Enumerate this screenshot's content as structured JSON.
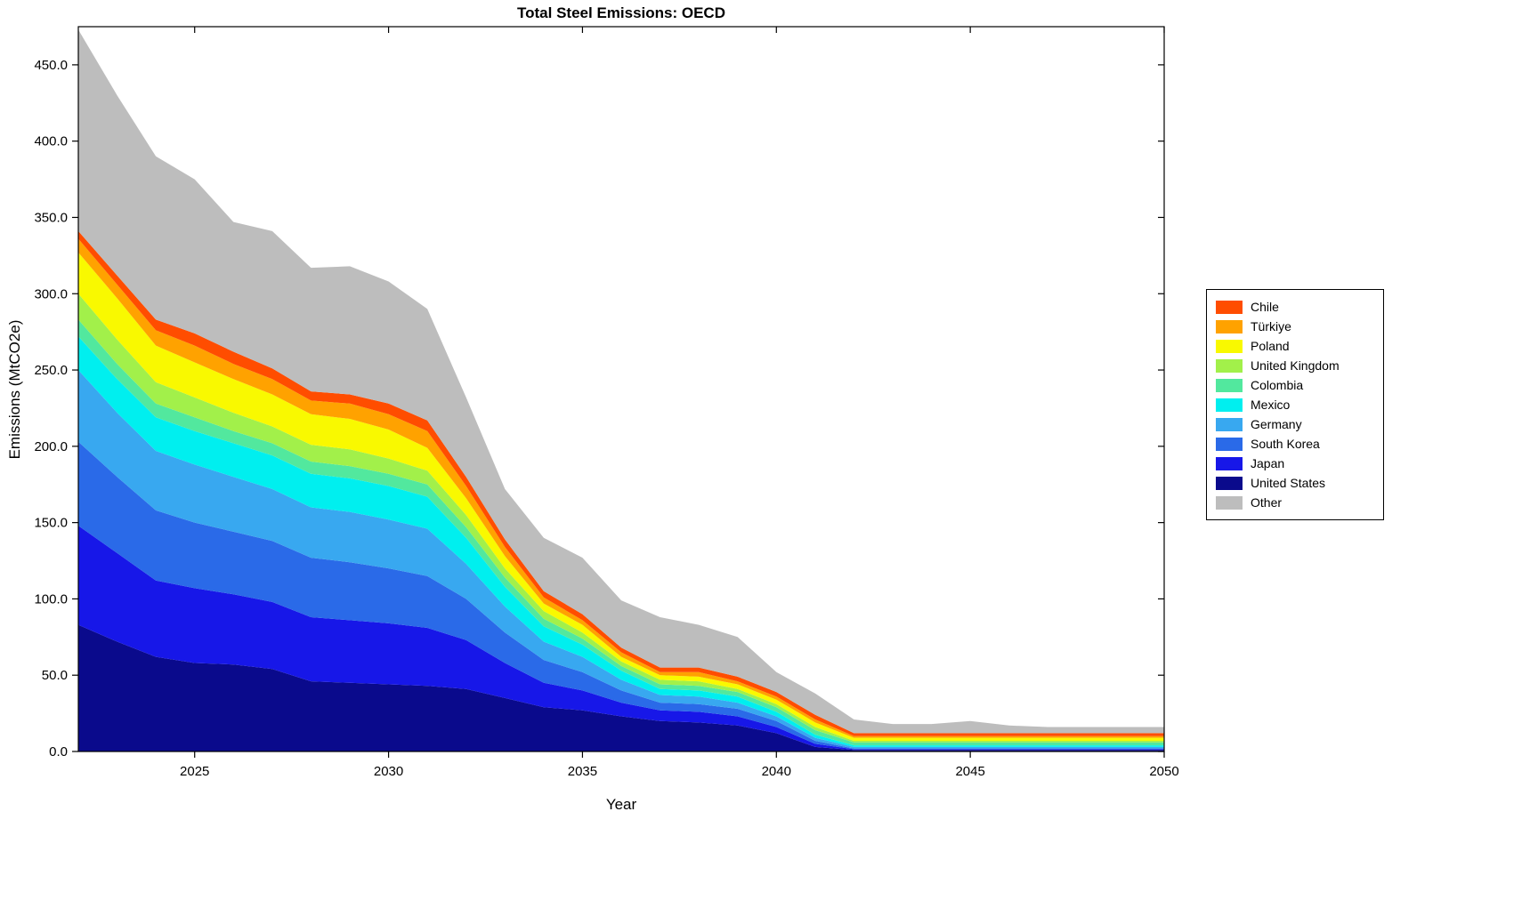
{
  "chart_data": {
    "type": "area",
    "stacked": true,
    "title": "Total Steel Emissions: OECD",
    "xlabel": "Year",
    "ylabel": "Emissions (MtCO2e)",
    "x": [
      2022,
      2023,
      2024,
      2025,
      2026,
      2027,
      2028,
      2029,
      2030,
      2031,
      2032,
      2033,
      2034,
      2035,
      2036,
      2037,
      2038,
      2039,
      2040,
      2041,
      2042,
      2043,
      2044,
      2045,
      2046,
      2047,
      2048,
      2049,
      2050
    ],
    "xticks": [
      2025,
      2030,
      2035,
      2040,
      2045,
      2050
    ],
    "yticks": [
      0,
      50,
      100,
      150,
      200,
      250,
      300,
      350,
      400,
      450
    ],
    "ylim": [
      0,
      475
    ],
    "grid": false,
    "legend_position": "right-outside",
    "series": [
      {
        "name": "United States",
        "color": "#0a0a8c",
        "values": [
          83,
          72,
          62,
          58,
          57,
          54,
          46,
          45,
          44,
          43,
          41,
          35,
          29,
          27,
          23,
          20,
          19,
          17,
          12,
          3,
          1,
          1,
          1,
          1,
          1,
          1,
          1,
          1,
          1
        ]
      },
      {
        "name": "Japan",
        "color": "#1717e8",
        "values": [
          65,
          58,
          50,
          49,
          46,
          44,
          42,
          41,
          40,
          38,
          32,
          23,
          16,
          13,
          9,
          7,
          7,
          6,
          4,
          2,
          0.5,
          0.5,
          0.5,
          0.5,
          0.5,
          0.5,
          0.5,
          0.5,
          0.5
        ]
      },
      {
        "name": "South Korea",
        "color": "#2a6ae8",
        "values": [
          55,
          50,
          46,
          43,
          41,
          40,
          39,
          38,
          36,
          34,
          27,
          20,
          15,
          12,
          8,
          5,
          5,
          5,
          4,
          2,
          0.5,
          0.5,
          0.5,
          0.5,
          0.5,
          0.5,
          0.5,
          0.5,
          0.5
        ]
      },
      {
        "name": "Germany",
        "color": "#38a8f0",
        "values": [
          47,
          42,
          39,
          38,
          36,
          34,
          33,
          33,
          32,
          31,
          23,
          17,
          12,
          10,
          7,
          5,
          5,
          4,
          3,
          2,
          1,
          1,
          1,
          1,
          1,
          1,
          1,
          1,
          1
        ]
      },
      {
        "name": "Mexico",
        "color": "#00efef",
        "values": [
          22,
          22,
          22,
          22,
          22,
          22,
          22,
          22,
          22,
          21,
          17,
          13,
          10,
          8,
          6,
          4,
          4,
          4,
          3,
          2,
          1,
          1,
          1,
          1,
          1,
          1,
          1,
          1,
          1
        ]
      },
      {
        "name": "Colombia",
        "color": "#52e89e",
        "values": [
          11,
          10,
          9,
          9,
          8,
          8,
          8,
          8,
          8,
          8,
          7,
          6,
          5,
          4,
          3,
          3,
          3,
          3,
          3,
          3,
          2,
          2,
          2,
          2,
          2,
          2,
          2,
          2,
          2
        ]
      },
      {
        "name": "United Kingdom",
        "color": "#a2f04a",
        "values": [
          17,
          16,
          14,
          13,
          12,
          11,
          11,
          11,
          10,
          9,
          8,
          6,
          5,
          4,
          3,
          3,
          3,
          2,
          2,
          2,
          1,
          1,
          1,
          1,
          1,
          1,
          1,
          1,
          1
        ]
      },
      {
        "name": "Poland",
        "color": "#f9f900",
        "values": [
          27,
          27,
          24,
          23,
          22,
          21,
          20,
          20,
          19,
          15,
          11,
          8,
          5,
          5,
          3,
          3,
          3,
          3,
          3,
          3,
          2,
          2,
          2,
          2,
          2,
          2,
          2,
          2,
          2
        ]
      },
      {
        "name": "Türkiye",
        "color": "#ffa200",
        "values": [
          9,
          9,
          10,
          11,
          10,
          10,
          9,
          10,
          10,
          11,
          8,
          6,
          4,
          3,
          3,
          2,
          3,
          2,
          2,
          2,
          1,
          1,
          1,
          1,
          1,
          1,
          1,
          1,
          1
        ]
      },
      {
        "name": "Chile",
        "color": "#ff4d00",
        "values": [
          5,
          6,
          7,
          8,
          8,
          7,
          6,
          6,
          7,
          7,
          6,
          5,
          4,
          4,
          3,
          3,
          3,
          3,
          3,
          3,
          2,
          2,
          2,
          2,
          2,
          2,
          2,
          2,
          2
        ]
      },
      {
        "name": "Other",
        "color": "#bdbdbd",
        "values": [
          132,
          118,
          107,
          101,
          85,
          90,
          81,
          84,
          80,
          73,
          52,
          33,
          35,
          37,
          31,
          33,
          28,
          26,
          13,
          14,
          9,
          6,
          6,
          8,
          5,
          4,
          4,
          4,
          4
        ]
      }
    ],
    "legend_order": [
      "Chile",
      "Türkiye",
      "Poland",
      "United Kingdom",
      "Colombia",
      "Mexico",
      "Germany",
      "South Korea",
      "Japan",
      "United States",
      "Other"
    ]
  }
}
